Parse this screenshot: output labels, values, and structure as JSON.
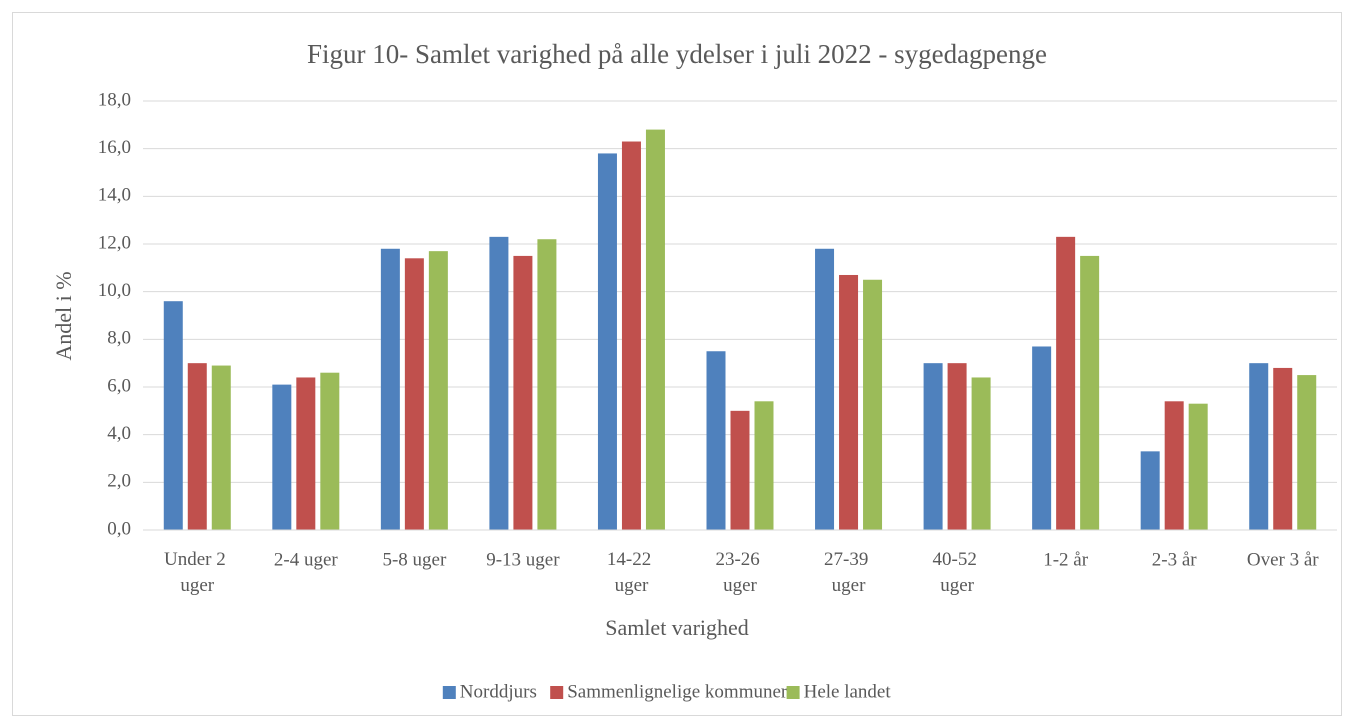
{
  "chart_data": {
    "type": "bar",
    "title": "Figur 10- Samlet varighed på alle ydelser i juli 2022 - sygedagpenge",
    "xlabel": "Samlet varighed",
    "ylabel": "Andel i %",
    "categories": [
      "Under 2 uger",
      "2-4 uger",
      "5-8 uger",
      "9-13 uger",
      "14-22 uger",
      "23-26 uger",
      "27-39 uger",
      "40-52 uger",
      "1-2 år",
      "2-3 år",
      "Over 3 år"
    ],
    "series": [
      {
        "name": "Norddjurs",
        "color": "#4f81bd",
        "values": [
          9.6,
          6.1,
          11.8,
          12.3,
          15.8,
          7.5,
          11.8,
          7.0,
          7.7,
          3.3,
          7.0
        ]
      },
      {
        "name": "Sammenlignelige kommuner",
        "color": "#c0504d",
        "values": [
          7.0,
          6.4,
          11.4,
          11.5,
          16.3,
          5.0,
          10.7,
          7.0,
          12.3,
          5.4,
          6.8
        ]
      },
      {
        "name": "Hele landet",
        "color": "#9bbb59",
        "values": [
          6.9,
          6.6,
          11.7,
          12.2,
          16.8,
          5.4,
          10.5,
          6.4,
          11.5,
          5.3,
          6.5
        ]
      }
    ],
    "ylim": [
      0,
      18
    ],
    "yticks": [
      {
        "value": 0,
        "label": "0,0"
      },
      {
        "value": 2,
        "label": "2,0"
      },
      {
        "value": 4,
        "label": "4,0"
      },
      {
        "value": 6,
        "label": "6,0"
      },
      {
        "value": 8,
        "label": "8,0"
      },
      {
        "value": 10,
        "label": "10,0"
      },
      {
        "value": 12,
        "label": "12,0"
      },
      {
        "value": 14,
        "label": "14,0"
      },
      {
        "value": 16,
        "label": "16,0"
      },
      {
        "value": 18,
        "label": "18,0"
      }
    ],
    "grid": true,
    "legend": "bottom"
  }
}
